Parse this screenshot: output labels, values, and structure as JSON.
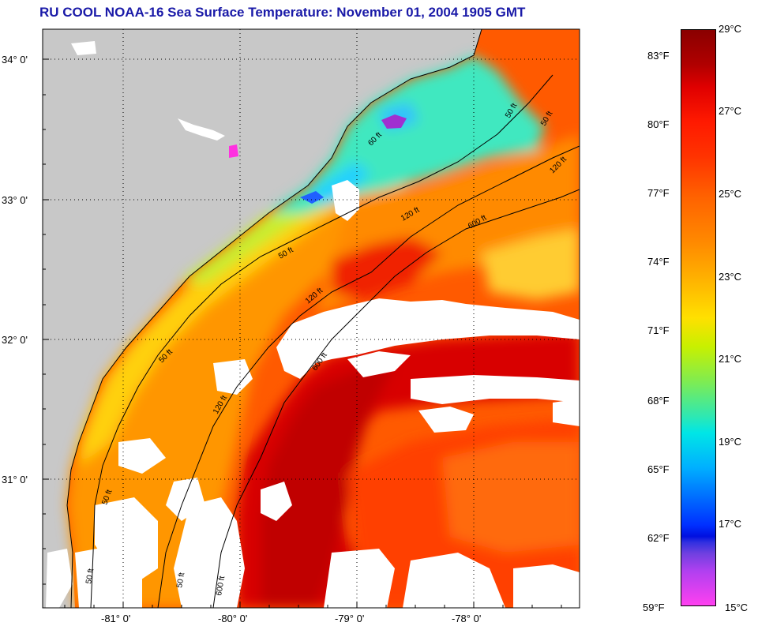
{
  "title": "RU COOL  NOAA-16  Sea Surface Temperature:  November 01, 2004 1905 GMT",
  "lat_labels": [
    "34° 0'",
    "33° 0'",
    "32° 0'",
    "31° 0'"
  ],
  "lon_labels": [
    "-81° 0'",
    "-80° 0'",
    "-79° 0'",
    "-78° 0'"
  ],
  "contour_labels": [
    "50 ft",
    "50 ft",
    "120 ft",
    "600 ft",
    "60 ft",
    "120 ft",
    "50 ft",
    "120 ft",
    "600 ft",
    "50 ft",
    "120 ft",
    "50 ft",
    "50 ft",
    "50 ft",
    "600 ft"
  ],
  "colorbar": {
    "fahrenheit": [
      "83°F",
      "80°F",
      "77°F",
      "74°F",
      "71°F",
      "68°F",
      "65°F",
      "62°F",
      "59°F"
    ],
    "celsius": [
      "29°C",
      "27°C",
      "25°C",
      "23°C",
      "21°C",
      "19°C",
      "17°C",
      "15°C"
    ]
  },
  "colors": {
    "land": "#c8c8c8",
    "cloud": "#ffffff",
    "title": "#1a1aa8",
    "gulf_stream": "#d00000",
    "offshore": "#ff5000",
    "shelf_warm": "#ff9a00",
    "shelf_mid": "#ffe020",
    "shelf_cool": "#30e8c0"
  }
}
